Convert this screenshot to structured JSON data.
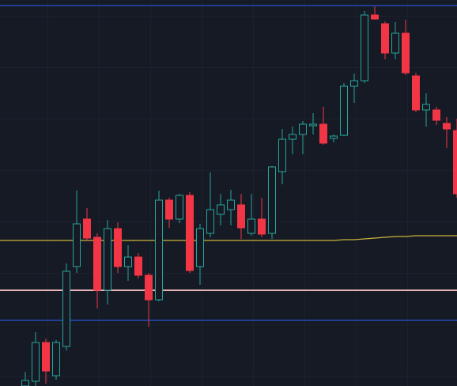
{
  "chart_data": {
    "type": "candlestick",
    "ylim": [
      0,
      488
    ],
    "up_color": "#26a69a",
    "down_color": "#f23645",
    "background": "#161a25",
    "open": [
      0,
      6,
      55,
      13,
      50,
      151,
      211,
      188,
      121,
      199,
      151,
      163,
      140,
      109,
      235,
      211,
      241,
      151,
      193,
      217,
      223,
      229,
      193,
      211,
      193,
      271,
      312,
      318,
      329,
      331,
      313,
      317,
      379,
      386,
      469,
      458,
      421,
      446,
      392,
      349,
      349,
      332,
      323
    ],
    "high": [
      18,
      68,
      60,
      58,
      155,
      247,
      225,
      193,
      210,
      207,
      178,
      168,
      143,
      247,
      238,
      243,
      245,
      205,
      270,
      243,
      248,
      243,
      243,
      238,
      278,
      325,
      328,
      335,
      345,
      353,
      318,
      383,
      395,
      474,
      480,
      461,
      460,
      463,
      396,
      370,
      353,
      340,
      338
    ],
    "low": [
      0,
      0,
      3,
      8,
      45,
      143,
      183,
      98,
      103,
      143,
      133,
      136,
      75,
      107,
      200,
      206,
      143,
      128,
      188,
      203,
      203,
      186,
      190,
      188,
      186,
      255,
      293,
      293,
      318,
      305,
      308,
      316,
      358,
      383,
      463,
      413,
      413,
      393,
      346,
      328,
      330,
      301,
      238
    ],
    "close": [
      7,
      55,
      19,
      55,
      145,
      205,
      187,
      121,
      199,
      151,
      163,
      140,
      109,
      235,
      211,
      241,
      146,
      199,
      223,
      229,
      235,
      200,
      211,
      192,
      277,
      312,
      318,
      331,
      331,
      307,
      316,
      379,
      386,
      469,
      464,
      421,
      446,
      396,
      349,
      356,
      336,
      325,
      243
    ],
    "moving_average": {
      "color": "#c9b23a",
      "values": [
        184,
        184,
        184,
        184,
        184,
        184,
        184,
        184,
        184,
        184,
        184,
        184,
        184,
        184,
        184,
        184,
        184,
        184,
        184,
        184,
        184,
        184,
        184,
        184,
        184,
        184,
        184,
        184,
        184,
        184,
        184,
        185,
        185,
        186,
        187,
        188,
        189,
        189,
        190,
        190,
        190,
        190,
        190
      ]
    },
    "hlines": [
      {
        "value": 481,
        "color": "#2962ff"
      },
      {
        "value": 83,
        "color": "#2962ff"
      },
      {
        "value": 121,
        "color": "#e8b4b8"
      }
    ]
  }
}
